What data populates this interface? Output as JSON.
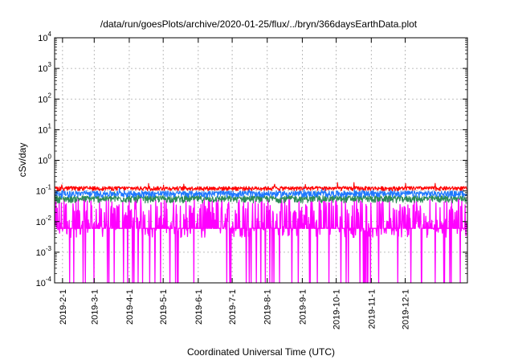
{
  "chart_data": {
    "type": "line",
    "title": "/data/run/goesPlots/archive/2020-01-25/flux/../bryn/366daysEarthData.plot",
    "xlabel": "Coordinated Universal Time (UTC)",
    "ylabel": "cSv/day",
    "yscale": "log",
    "ylim": [
      0.0001,
      10000
    ],
    "xlim": [
      "2019-01-25",
      "2020-01-25"
    ],
    "grid": true,
    "x_ticks": [
      "2019-2-1",
      "2019-3-1",
      "2019-4-1",
      "2019-5-1",
      "2019-6-1",
      "2019-7-1",
      "2019-8-1",
      "2019-9-1",
      "2019-10-1",
      "2019-11-1",
      "2019-12-1"
    ],
    "y_ticks": [
      {
        "base": "10",
        "exp": "-4"
      },
      {
        "base": "10",
        "exp": "-3"
      },
      {
        "base": "10",
        "exp": "-2"
      },
      {
        "base": "10",
        "exp": "-1"
      },
      {
        "base": "10",
        "exp": "0"
      },
      {
        "base": "10",
        "exp": "1"
      },
      {
        "base": "10",
        "exp": "2"
      },
      {
        "base": "10",
        "exp": "3"
      },
      {
        "base": "10",
        "exp": "4"
      }
    ],
    "series": [
      {
        "color": "#ff00ff",
        "typical_range": [
          0.003,
          0.06
        ],
        "dropouts_to": 0.0001,
        "floor_step": 0.006
      },
      {
        "color": "#2e8b57",
        "typical_range": [
          0.04,
          0.07
        ]
      },
      {
        "color": "#1e78ff",
        "typical_range": [
          0.06,
          0.1
        ]
      },
      {
        "color": "#ff0000",
        "typical_range": [
          0.1,
          0.14
        ]
      }
    ]
  }
}
